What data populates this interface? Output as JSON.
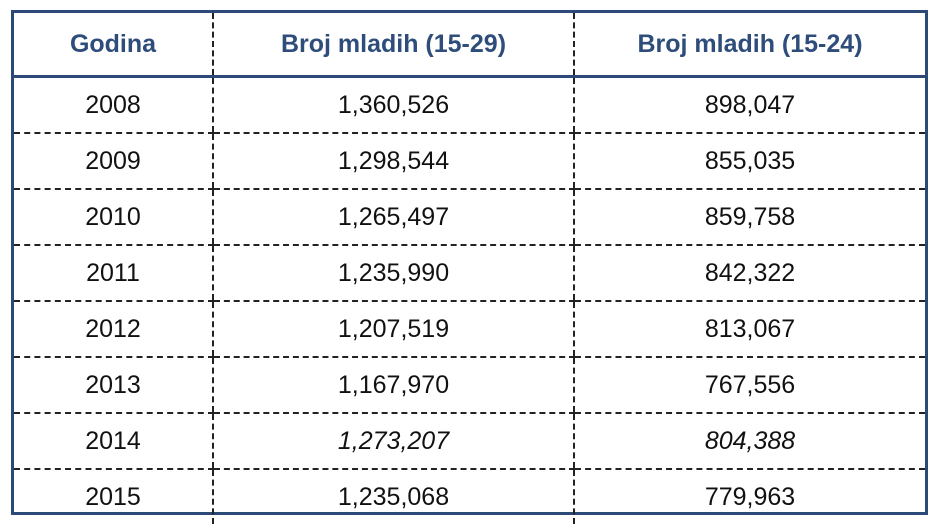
{
  "table": {
    "headers": [
      "Godina",
      "Broj mladih (15-29)",
      "Broj mladih (15-24)"
    ],
    "rows": [
      {
        "year": "2008",
        "youth_15_29": "1,360,526",
        "youth_15_24": "898,047",
        "italic": false
      },
      {
        "year": "2009",
        "youth_15_29": "1,298,544",
        "youth_15_24": "855,035",
        "italic": false
      },
      {
        "year": "2010",
        "youth_15_29": "1,265,497",
        "youth_15_24": "859,758",
        "italic": false
      },
      {
        "year": "2011",
        "youth_15_29": "1,235,990",
        "youth_15_24": "842,322",
        "italic": false
      },
      {
        "year": "2012",
        "youth_15_29": "1,207,519",
        "youth_15_24": "813,067",
        "italic": false
      },
      {
        "year": "2013",
        "youth_15_29": "1,167,970",
        "youth_15_24": "767,556",
        "italic": false
      },
      {
        "year": "2014",
        "youth_15_29": "1,273,207",
        "youth_15_24": "804,388",
        "italic": true
      },
      {
        "year": "2015",
        "youth_15_29": "1,235,068",
        "youth_15_24": "779,963",
        "italic": false
      }
    ]
  },
  "colors": {
    "header_text": "#2e4d7b",
    "border": "#2b4a78",
    "body_text": "#111111"
  }
}
